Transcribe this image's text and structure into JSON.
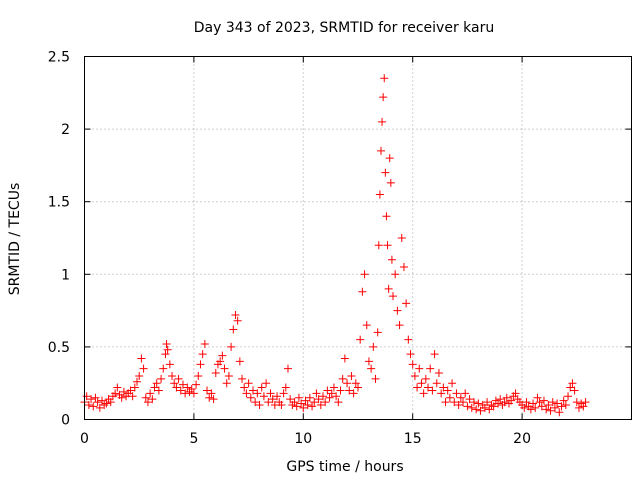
{
  "chart_data": {
    "type": "scatter",
    "title": "Day 343 of 2023, SRMTID for receiver karu",
    "xlabel": "GPS time / hours",
    "ylabel": "SRMTID / TECUs",
    "xlim": [
      0,
      25
    ],
    "ylim": [
      0,
      2.5
    ],
    "xticks": [
      0,
      5,
      10,
      15,
      20
    ],
    "xtick_labels": [
      "0",
      "5",
      "10",
      "15",
      "20"
    ],
    "yticks": [
      0,
      0.5,
      1,
      1.5,
      2,
      2.5
    ],
    "ytick_labels": [
      "0",
      "0.5",
      "1",
      "1.5",
      "2",
      "2.5"
    ],
    "grid": true,
    "marker": "plus",
    "color": "#ff0000",
    "series": [
      {
        "name": "SRMTID",
        "points": [
          [
            0.0,
            0.12
          ],
          [
            0.1,
            0.16
          ],
          [
            0.2,
            0.1
          ],
          [
            0.3,
            0.14
          ],
          [
            0.4,
            0.09
          ],
          [
            0.5,
            0.15
          ],
          [
            0.6,
            0.12
          ],
          [
            0.7,
            0.08
          ],
          [
            0.8,
            0.13
          ],
          [
            0.9,
            0.1
          ],
          [
            1.0,
            0.11
          ],
          [
            1.1,
            0.14
          ],
          [
            1.2,
            0.12
          ],
          [
            1.3,
            0.16
          ],
          [
            1.4,
            0.18
          ],
          [
            1.5,
            0.22
          ],
          [
            1.6,
            0.17
          ],
          [
            1.7,
            0.15
          ],
          [
            1.8,
            0.19
          ],
          [
            1.9,
            0.16
          ],
          [
            2.0,
            0.18
          ],
          [
            2.1,
            0.2
          ],
          [
            2.2,
            0.16
          ],
          [
            2.3,
            0.22
          ],
          [
            2.4,
            0.26
          ],
          [
            2.5,
            0.3
          ],
          [
            2.6,
            0.42
          ],
          [
            2.7,
            0.35
          ],
          [
            2.8,
            0.15
          ],
          [
            2.9,
            0.12
          ],
          [
            3.0,
            0.18
          ],
          [
            3.1,
            0.14
          ],
          [
            3.2,
            0.22
          ],
          [
            3.3,
            0.25
          ],
          [
            3.4,
            0.2
          ],
          [
            3.5,
            0.28
          ],
          [
            3.6,
            0.35
          ],
          [
            3.7,
            0.45
          ],
          [
            3.75,
            0.52
          ],
          [
            3.8,
            0.48
          ],
          [
            3.9,
            0.38
          ],
          [
            4.0,
            0.3
          ],
          [
            4.1,
            0.25
          ],
          [
            4.2,
            0.22
          ],
          [
            4.3,
            0.28
          ],
          [
            4.4,
            0.2
          ],
          [
            4.5,
            0.24
          ],
          [
            4.6,
            0.18
          ],
          [
            4.7,
            0.22
          ],
          [
            4.8,
            0.19
          ],
          [
            4.9,
            0.21
          ],
          [
            5.0,
            0.18
          ],
          [
            5.1,
            0.24
          ],
          [
            5.2,
            0.3
          ],
          [
            5.3,
            0.38
          ],
          [
            5.4,
            0.45
          ],
          [
            5.5,
            0.52
          ],
          [
            5.6,
            0.2
          ],
          [
            5.7,
            0.15
          ],
          [
            5.8,
            0.18
          ],
          [
            5.9,
            0.14
          ],
          [
            6.0,
            0.32
          ],
          [
            6.1,
            0.38
          ],
          [
            6.2,
            0.4
          ],
          [
            6.3,
            0.44
          ],
          [
            6.4,
            0.35
          ],
          [
            6.5,
            0.25
          ],
          [
            6.6,
            0.3
          ],
          [
            6.7,
            0.5
          ],
          [
            6.8,
            0.62
          ],
          [
            6.9,
            0.72
          ],
          [
            7.0,
            0.68
          ],
          [
            7.1,
            0.4
          ],
          [
            7.2,
            0.28
          ],
          [
            7.3,
            0.22
          ],
          [
            7.4,
            0.18
          ],
          [
            7.5,
            0.25
          ],
          [
            7.6,
            0.15
          ],
          [
            7.7,
            0.2
          ],
          [
            7.8,
            0.12
          ],
          [
            7.9,
            0.18
          ],
          [
            8.0,
            0.1
          ],
          [
            8.1,
            0.22
          ],
          [
            8.2,
            0.16
          ],
          [
            8.3,
            0.25
          ],
          [
            8.4,
            0.12
          ],
          [
            8.5,
            0.18
          ],
          [
            8.6,
            0.14
          ],
          [
            8.7,
            0.1
          ],
          [
            8.8,
            0.16
          ],
          [
            8.9,
            0.12
          ],
          [
            9.0,
            0.1
          ],
          [
            9.1,
            0.18
          ],
          [
            9.2,
            0.22
          ],
          [
            9.3,
            0.35
          ],
          [
            9.4,
            0.14
          ],
          [
            9.5,
            0.1
          ],
          [
            9.6,
            0.12
          ],
          [
            9.7,
            0.09
          ],
          [
            9.8,
            0.15
          ],
          [
            9.9,
            0.11
          ],
          [
            10.0,
            0.08
          ],
          [
            10.1,
            0.13
          ],
          [
            10.2,
            0.1
          ],
          [
            10.3,
            0.15
          ],
          [
            10.4,
            0.09
          ],
          [
            10.5,
            0.12
          ],
          [
            10.6,
            0.18
          ],
          [
            10.7,
            0.14
          ],
          [
            10.8,
            0.1
          ],
          [
            10.9,
            0.16
          ],
          [
            11.0,
            0.12
          ],
          [
            11.1,
            0.2
          ],
          [
            11.2,
            0.15
          ],
          [
            11.3,
            0.18
          ],
          [
            11.4,
            0.22
          ],
          [
            11.5,
            0.16
          ],
          [
            11.6,
            0.12
          ],
          [
            11.7,
            0.2
          ],
          [
            11.8,
            0.28
          ],
          [
            11.9,
            0.42
          ],
          [
            12.0,
            0.25
          ],
          [
            12.1,
            0.2
          ],
          [
            12.2,
            0.3
          ],
          [
            12.3,
            0.18
          ],
          [
            12.4,
            0.25
          ],
          [
            12.5,
            0.22
          ],
          [
            12.6,
            0.55
          ],
          [
            12.7,
            0.88
          ],
          [
            12.8,
            1.0
          ],
          [
            12.9,
            0.65
          ],
          [
            13.0,
            0.4
          ],
          [
            13.1,
            0.35
          ],
          [
            13.2,
            0.5
          ],
          [
            13.3,
            0.28
          ],
          [
            13.4,
            0.6
          ],
          [
            13.45,
            1.2
          ],
          [
            13.5,
            1.55
          ],
          [
            13.55,
            1.85
          ],
          [
            13.6,
            2.05
          ],
          [
            13.65,
            2.22
          ],
          [
            13.7,
            2.35
          ],
          [
            13.75,
            1.7
          ],
          [
            13.8,
            1.4
          ],
          [
            13.85,
            1.2
          ],
          [
            13.9,
            0.9
          ],
          [
            13.95,
            1.8
          ],
          [
            14.0,
            1.63
          ],
          [
            14.05,
            1.1
          ],
          [
            14.1,
            0.85
          ],
          [
            14.2,
            1.0
          ],
          [
            14.3,
            0.75
          ],
          [
            14.4,
            0.65
          ],
          [
            14.5,
            1.25
          ],
          [
            14.6,
            1.05
          ],
          [
            14.7,
            0.8
          ],
          [
            14.8,
            0.55
          ],
          [
            14.9,
            0.45
          ],
          [
            15.0,
            0.38
          ],
          [
            15.1,
            0.3
          ],
          [
            15.2,
            0.22
          ],
          [
            15.3,
            0.35
          ],
          [
            15.4,
            0.25
          ],
          [
            15.5,
            0.18
          ],
          [
            15.6,
            0.28
          ],
          [
            15.7,
            0.22
          ],
          [
            15.8,
            0.35
          ],
          [
            15.9,
            0.2
          ],
          [
            16.0,
            0.45
          ],
          [
            16.1,
            0.25
          ],
          [
            16.2,
            0.32
          ],
          [
            16.3,
            0.18
          ],
          [
            16.4,
            0.22
          ],
          [
            16.5,
            0.12
          ],
          [
            16.6,
            0.2
          ],
          [
            16.7,
            0.15
          ],
          [
            16.8,
            0.25
          ],
          [
            16.9,
            0.12
          ],
          [
            17.0,
            0.18
          ],
          [
            17.1,
            0.1
          ],
          [
            17.2,
            0.15
          ],
          [
            17.3,
            0.12
          ],
          [
            17.4,
            0.18
          ],
          [
            17.5,
            0.09
          ],
          [
            17.6,
            0.14
          ],
          [
            17.7,
            0.08
          ],
          [
            17.8,
            0.12
          ],
          [
            17.9,
            0.07
          ],
          [
            18.0,
            0.11
          ],
          [
            18.1,
            0.06
          ],
          [
            18.2,
            0.1
          ],
          [
            18.3,
            0.08
          ],
          [
            18.4,
            0.12
          ],
          [
            18.5,
            0.07
          ],
          [
            18.6,
            0.1
          ],
          [
            18.7,
            0.09
          ],
          [
            18.8,
            0.13
          ],
          [
            18.9,
            0.11
          ],
          [
            19.0,
            0.14
          ],
          [
            19.1,
            0.1
          ],
          [
            19.2,
            0.12
          ],
          [
            19.3,
            0.15
          ],
          [
            19.4,
            0.11
          ],
          [
            19.5,
            0.13
          ],
          [
            19.6,
            0.16
          ],
          [
            19.7,
            0.18
          ],
          [
            19.8,
            0.14
          ],
          [
            19.9,
            0.12
          ],
          [
            20.0,
            0.1
          ],
          [
            20.1,
            0.08
          ],
          [
            20.2,
            0.12
          ],
          [
            20.3,
            0.09
          ],
          [
            20.4,
            0.07
          ],
          [
            20.5,
            0.11
          ],
          [
            20.6,
            0.08
          ],
          [
            20.7,
            0.15
          ],
          [
            20.8,
            0.12
          ],
          [
            20.9,
            0.09
          ],
          [
            21.0,
            0.13
          ],
          [
            21.1,
            0.07
          ],
          [
            21.2,
            0.1
          ],
          [
            21.3,
            0.06
          ],
          [
            21.4,
            0.12
          ],
          [
            21.5,
            0.08
          ],
          [
            21.6,
            0.11
          ],
          [
            21.7,
            0.05
          ],
          [
            21.8,
            0.09
          ],
          [
            21.9,
            0.13
          ],
          [
            22.0,
            0.1
          ],
          [
            22.1,
            0.16
          ],
          [
            22.2,
            0.22
          ],
          [
            22.3,
            0.25
          ],
          [
            22.4,
            0.2
          ],
          [
            22.5,
            0.12
          ],
          [
            22.6,
            0.08
          ],
          [
            22.7,
            0.11
          ],
          [
            22.8,
            0.09
          ],
          [
            22.9,
            0.12
          ]
        ]
      }
    ]
  }
}
